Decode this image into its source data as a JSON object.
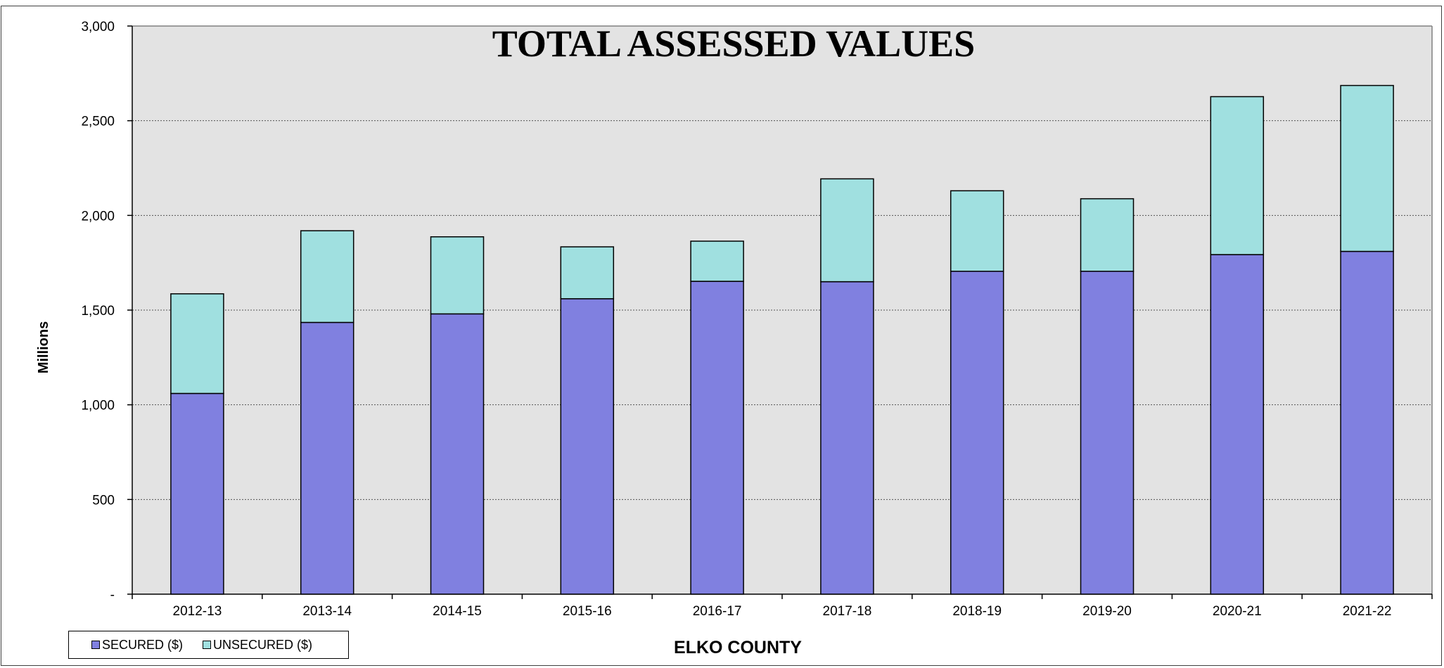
{
  "chart_data": {
    "type": "bar",
    "stacked": true,
    "title": "TOTAL ASSESSED VALUES",
    "ylabel": "Millions",
    "xlabel": "ELKO COUNTY",
    "ylim": [
      0,
      3000
    ],
    "yticks": [
      0,
      500,
      1000,
      1500,
      2000,
      2500,
      3000
    ],
    "ytick_labels": [
      "-",
      "500",
      "1,000",
      "1,500",
      "2,000",
      "2,500",
      "3,000"
    ],
    "grid": true,
    "legend_position": "bottom-left",
    "categories": [
      "2012-13",
      "2013-14",
      "2014-15",
      "2015-16",
      "2016-17",
      "2017-18",
      "2018-19",
      "2019-20",
      "2020-21",
      "2021-22"
    ],
    "series": [
      {
        "name": "SECURED ($)",
        "color": "#8080e0",
        "values": [
          1060,
          1435,
          1480,
          1560,
          1652,
          1650,
          1705,
          1705,
          1793,
          1810
        ]
      },
      {
        "name": "UNSECURED ($)",
        "color": "#a0e0e0",
        "values": [
          526,
          484,
          407,
          274,
          212,
          543,
          425,
          383,
          834,
          876
        ]
      }
    ],
    "colors": {
      "plot_background": "#e3e3e3",
      "gridline": "#555555",
      "bar_outline": "#000000"
    }
  }
}
